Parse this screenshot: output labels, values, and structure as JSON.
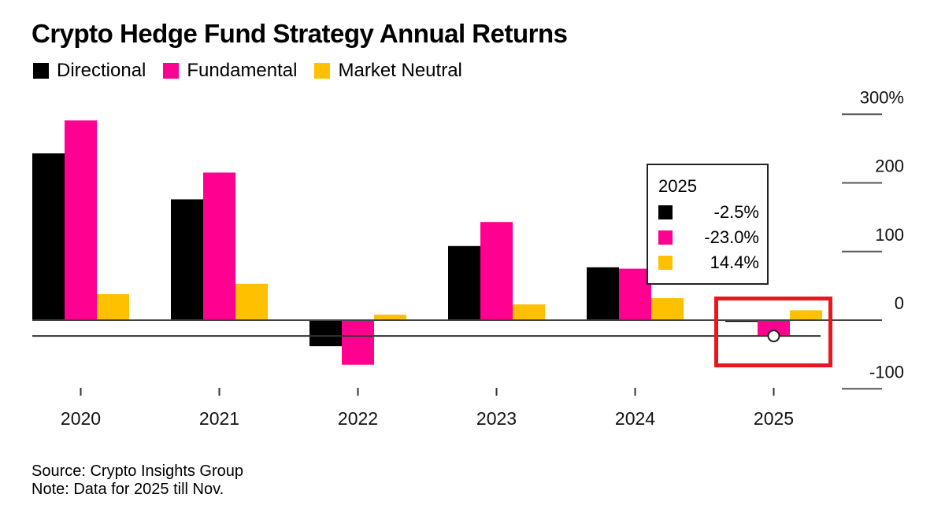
{
  "chart_data": {
    "type": "bar",
    "title": "Crypto Hedge Fund Strategy Annual Returns",
    "xlabel": "",
    "ylabel": "",
    "categories": [
      "2020",
      "2021",
      "2022",
      "2023",
      "2024",
      "2025"
    ],
    "series": [
      {
        "name": "Directional",
        "color": "#000000",
        "values": [
          243,
          176,
          -38,
          108,
          77,
          -2.5
        ]
      },
      {
        "name": "Fundamental",
        "color": "#ff0090",
        "values": [
          291,
          215,
          -65,
          143,
          75,
          -23.0
        ]
      },
      {
        "name": "Market Neutral",
        "color": "#ffc000",
        "values": [
          38,
          53,
          8,
          23,
          32,
          14.4
        ]
      }
    ],
    "ylim": [
      -100,
      300
    ],
    "yticks": [
      {
        "value": 300,
        "label": "300%"
      },
      {
        "value": 200,
        "label": "200"
      },
      {
        "value": 100,
        "label": "100"
      },
      {
        "value": 0,
        "label": "0"
      },
      {
        "value": -100,
        "label": "-100"
      }
    ],
    "y_axis_position": "right",
    "grid": false,
    "legend_position": "top-left",
    "reference_line": {
      "value": -23.0,
      "marker_category": "2025",
      "marker_series": "Fundamental"
    },
    "tooltip": {
      "title": "2025",
      "rows": [
        {
          "series": "Directional",
          "color": "#000000",
          "label": "-2.5%"
        },
        {
          "series": "Fundamental",
          "color": "#ff0090",
          "label": "-23.0%"
        },
        {
          "series": "Market Neutral",
          "color": "#ffc000",
          "label": "14.4%"
        }
      ]
    },
    "highlight": {
      "category": "2025",
      "color": "#e8161f"
    }
  },
  "footer": {
    "source": "Source: Crypto Insights Group",
    "note": "Note: Data for 2025 till Nov."
  }
}
